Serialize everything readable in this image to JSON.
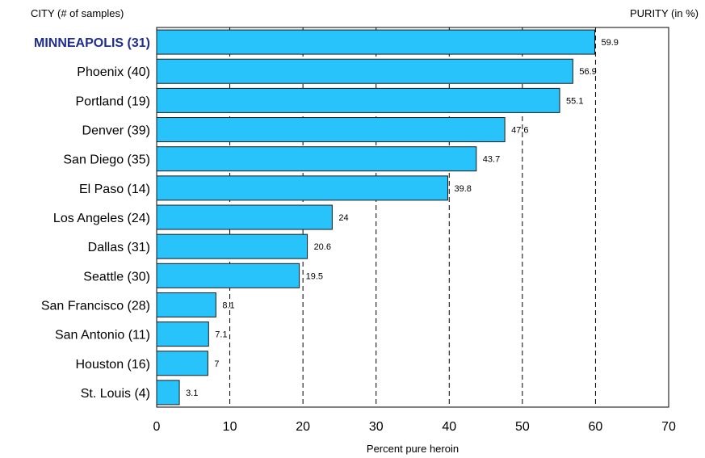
{
  "header": {
    "left": "CITY   (# of samples)",
    "right": "PURITY (in %)"
  },
  "colors": {
    "bar_fill": "#29C3FB",
    "bar_stroke": "#1a1a1a",
    "highlight_label": "#1F2E8C",
    "text": "#000000"
  },
  "chart_data": {
    "type": "bar",
    "orientation": "horizontal",
    "xlabel": "Percent pure heroin",
    "xlim": [
      0,
      70
    ],
    "xticks": [
      0,
      10,
      20,
      30,
      40,
      50,
      60,
      70
    ],
    "grid": "vertical dashed lines at 10, 20, 30, 40, 50, 60",
    "categories": [
      "MINNEAPOLIS (31)",
      "Phoenix (40)",
      "Portland (19)",
      "Denver (39)",
      "San Diego (35)",
      "El Paso (14)",
      "Los Angeles (24)",
      "Dallas (31)",
      "Seattle (30)",
      "San Francisco (28)",
      "San Antonio (11)",
      "Houston (16)",
      "St. Louis (4)"
    ],
    "values": [
      59.9,
      56.9,
      55.1,
      47.6,
      43.7,
      39.8,
      24,
      20.6,
      19.5,
      8.1,
      7.1,
      7,
      3.1
    ],
    "value_labels": [
      "59.9",
      "56.9",
      "55.1",
      "47.6",
      "43.7",
      "39.8",
      "24",
      "20.6",
      "19.5",
      "8.1",
      "7.1",
      "7",
      "3.1"
    ],
    "highlighted_category": "MINNEAPOLIS (31)"
  }
}
